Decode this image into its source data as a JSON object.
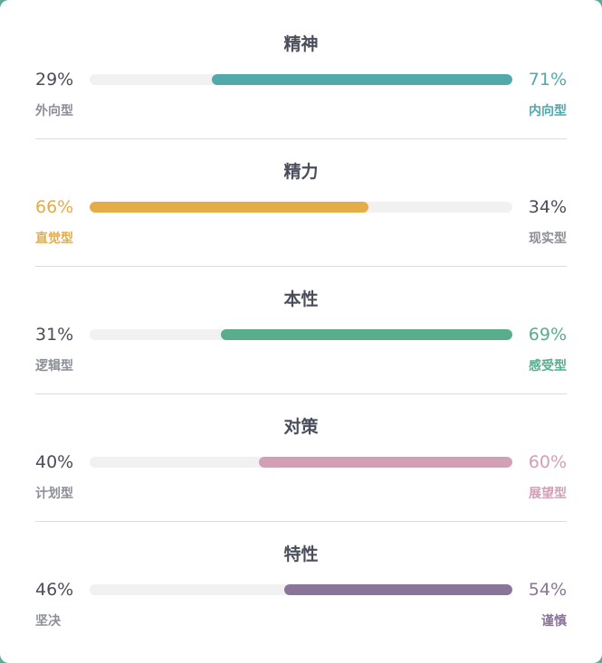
{
  "traits": [
    {
      "title": "精神",
      "left": {
        "percent": "29%",
        "label": "外向型",
        "value": 0.29
      },
      "right": {
        "percent": "71%",
        "label": "内向型",
        "value": 0.71
      },
      "dominant": "right",
      "color": "#52a9ac"
    },
    {
      "title": "精力",
      "left": {
        "percent": "66%",
        "label": "直觉型",
        "value": 0.66
      },
      "right": {
        "percent": "34%",
        "label": "现实型",
        "value": 0.34
      },
      "dominant": "left",
      "color": "#e5ac48"
    },
    {
      "title": "本性",
      "left": {
        "percent": "31%",
        "label": "逻辑型",
        "value": 0.31
      },
      "right": {
        "percent": "69%",
        "label": "感受型",
        "value": 0.69
      },
      "dominant": "right",
      "color": "#57ad8c"
    },
    {
      "title": "对策",
      "left": {
        "percent": "40%",
        "label": "计划型",
        "value": 0.4
      },
      "right": {
        "percent": "60%",
        "label": "展望型",
        "value": 0.6
      },
      "dominant": "right",
      "color": "#d2a0b4"
    },
    {
      "title": "特性",
      "left": {
        "percent": "46%",
        "label": "坚决",
        "value": 0.46
      },
      "right": {
        "percent": "54%",
        "label": "谨慎",
        "value": 0.54
      },
      "dominant": "right",
      "color": "#8a7598"
    }
  ],
  "colors": {
    "text_dark": "#4a4e5a",
    "text_muted": "#8c8f98",
    "track": "#f1f1f1"
  }
}
